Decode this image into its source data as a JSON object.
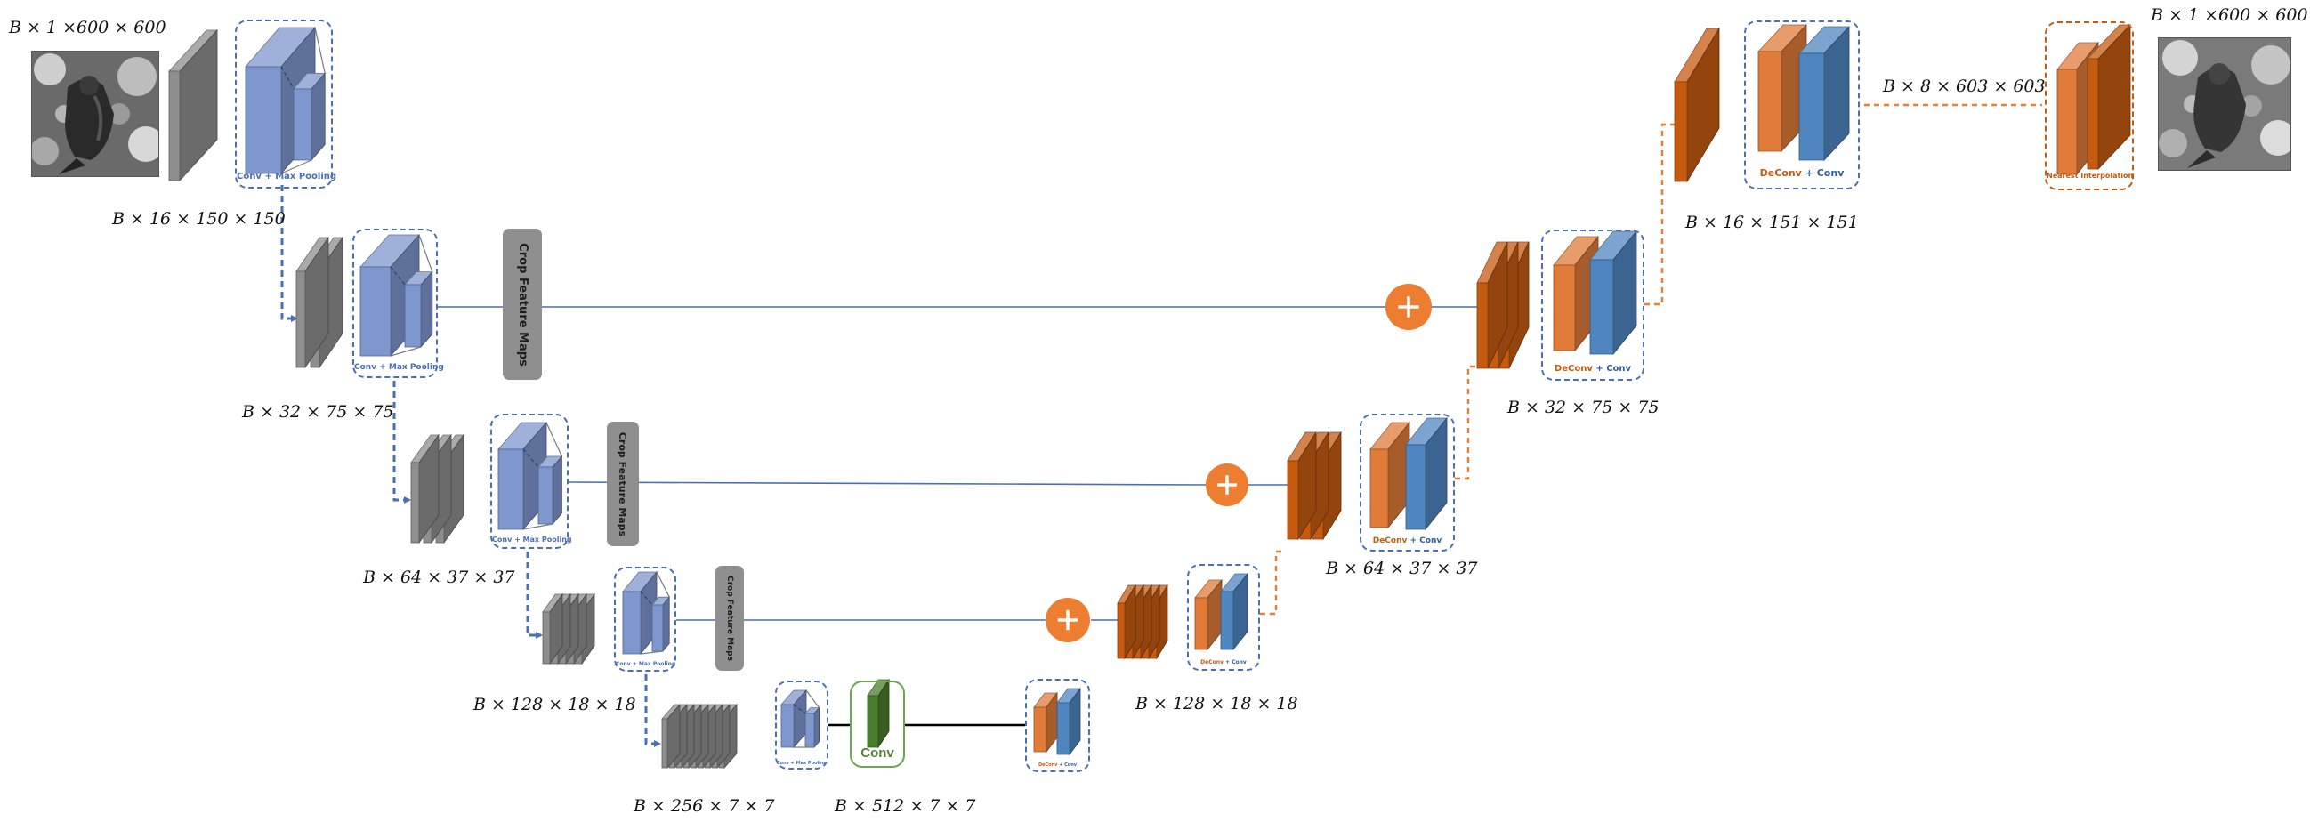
{
  "colors": {
    "encoder_block": "#8e8e8e",
    "encoder_module": "#7f97cf",
    "decoder_block": "#c55a11",
    "decoder_module_orange": "#e07b39",
    "decoder_module_blue": "#4f86c0",
    "bottleneck_conv": "#4a7c2c",
    "skip_line": "#4a6fb5",
    "plus_circle": "#ed7d31",
    "crop_box": "#8f8f8f"
  },
  "icons": {
    "plus": "plus-circle-icon"
  },
  "dims": {
    "input": "B × 1 ×600 × 600",
    "enc1": "B × 16 × 150 × 150",
    "enc2": "B × 32 × 75 × 75",
    "enc3": "B × 64 × 37 × 37",
    "enc4": "B × 128 × 18 × 18",
    "enc5": "B × 256 × 7 × 7",
    "bottleneck": "B × 512 × 7 × 7",
    "dec4": "B × 128 × 18 × 18",
    "dec3": "B × 64 × 37 × 37",
    "dec2": "B × 32 × 75 × 75",
    "dec1": "B × 16 × 151 × 151",
    "interp_in": "B × 8 × 603 × 603",
    "output": "B × 1 ×600 × 600"
  },
  "labels": {
    "conv_max_pooling": "Conv + Max Pooling",
    "deconv": "DeConv",
    "plus_conv": "+ Conv",
    "nearest_interpolation": "Nearest Interpolation",
    "crop_feature_maps": "Crop Feature Maps",
    "conv": "Conv"
  }
}
